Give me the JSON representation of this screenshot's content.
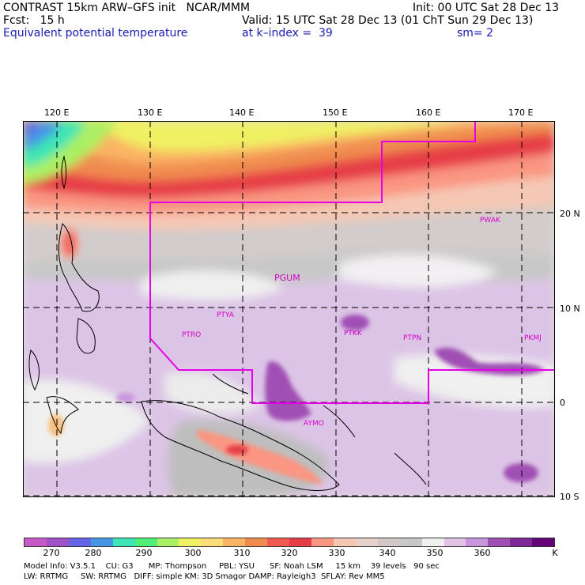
{
  "header": {
    "title": "CONTRAST 15km ARW–GFS init   NCAR/MMM",
    "fcst": "Fcst:   15 h",
    "init": "Init: 00 UTC Sat 28 Dec 13",
    "valid": "Valid: 15 UTC Sat 28 Dec 13 (01 ChT Sun 29 Dec 13)",
    "field": "Equivalent potential temperature",
    "level": "at k–index =  39",
    "smoothing": "sm= 2"
  },
  "axes": {
    "lon_ticks": [
      "120 E",
      "130 E",
      "140 E",
      "150 E",
      "160 E",
      "170 E"
    ],
    "lat_ticks": [
      "20 N",
      "10 N",
      "0",
      "10 S"
    ]
  },
  "stations": [
    "PWAK",
    "PGUM",
    "PTYA",
    "PTRO",
    "PTKK",
    "PTPN",
    "PKMJ",
    "AYMO"
  ],
  "colorbar": {
    "labels": [
      "270",
      "280",
      "290",
      "300",
      "310",
      "320",
      "330",
      "340",
      "350",
      "360",
      "K"
    ],
    "colors": [
      "#c85ac8",
      "#a050c8",
      "#6464e6",
      "#4696e6",
      "#3ce6b4",
      "#50f078",
      "#aaf064",
      "#f0f064",
      "#fadc78",
      "#fab464",
      "#f08c50",
      "#f05a50",
      "#e63c46",
      "#fa9682",
      "#f5c8b4",
      "#e6d2c8",
      "#d2c8c8",
      "#c8c8c8",
      "#f0f0f0",
      "#e1c3e6",
      "#c896dc",
      "#a050b4",
      "#7d2896",
      "#640078"
    ]
  },
  "footer": {
    "line1": "Model Info: V3.5.1    CU: G3      MP: Thompson     PBL: YSU      SF: Noah LSM     15 km    39 levels   90 sec",
    "line2": "LW: RRTMG     SW: RRTMG   DIFF: simple KM: 3D Smagor DAMP: Rayleigh3  SFLAY: Rev MM5"
  }
}
